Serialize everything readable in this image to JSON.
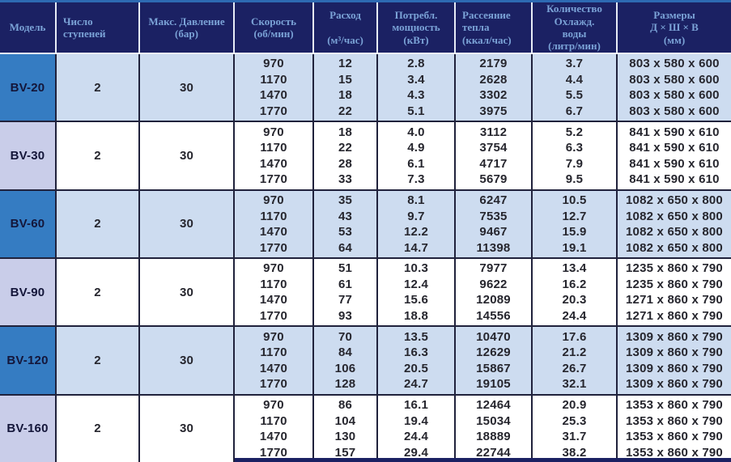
{
  "table": {
    "colors": {
      "header_bg": "#1b2163",
      "header_text": "#7ba3d7",
      "top_accent_line": "#2d6ab3",
      "model_cell_blue": "#357cc2",
      "model_cell_lavender": "#c9cde9",
      "row_light_blue": "#cddcf0",
      "row_white": "#ffffff",
      "grid_line": "#20223c",
      "data_text": "#26262e"
    },
    "headers": [
      {
        "label": "Модель"
      },
      {
        "label": "Число\nступеней"
      },
      {
        "label": "Макс. Давление\n(бар)"
      },
      {
        "label": "Скорость\n(об/мин)"
      },
      {
        "label": "Расход\n\n(м³/час)"
      },
      {
        "label": "Потребл.\nмощность\n(кВт)"
      },
      {
        "label": "Рассеяние\nтепла\n(ккал/час)"
      },
      {
        "label": "Количество\nОхлажд.\nводы\n(литр/мин)"
      },
      {
        "label": "Размеры\nД × Ш × В\n(мм)"
      }
    ],
    "models": [
      {
        "model": "BV-20",
        "stages": "2",
        "max_pressure": "30",
        "rows": [
          {
            "speed": "970",
            "flow": "12",
            "power": "2.8",
            "heat": "2179",
            "water": "3.7",
            "dims": "803 x 580 x 600"
          },
          {
            "speed": "1170",
            "flow": "15",
            "power": "3.4",
            "heat": "2628",
            "water": "4.4",
            "dims": "803 x 580 x 600"
          },
          {
            "speed": "1470",
            "flow": "18",
            "power": "4.3",
            "heat": "3302",
            "water": "5.5",
            "dims": "803 x 580 x 600"
          },
          {
            "speed": "1770",
            "flow": "22",
            "power": "5.1",
            "heat": "3975",
            "water": "6.7",
            "dims": "803 x 580 x 600"
          }
        ]
      },
      {
        "model": "BV-30",
        "stages": "2",
        "max_pressure": "30",
        "rows": [
          {
            "speed": "970",
            "flow": "18",
            "power": "4.0",
            "heat": "3112",
            "water": "5.2",
            "dims": "841 x 590 x 610"
          },
          {
            "speed": "1170",
            "flow": "22",
            "power": "4.9",
            "heat": "3754",
            "water": "6.3",
            "dims": "841 x 590 x 610"
          },
          {
            "speed": "1470",
            "flow": "28",
            "power": "6.1",
            "heat": "4717",
            "water": "7.9",
            "dims": "841 x 590 x 610"
          },
          {
            "speed": "1770",
            "flow": "33",
            "power": "7.3",
            "heat": "5679",
            "water": "9.5",
            "dims": "841 x 590 x 610"
          }
        ]
      },
      {
        "model": "BV-60",
        "stages": "2",
        "max_pressure": "30",
        "rows": [
          {
            "speed": "970",
            "flow": "35",
            "power": "8.1",
            "heat": "6247",
            "water": "10.5",
            "dims": "1082 x 650 x 800"
          },
          {
            "speed": "1170",
            "flow": "43",
            "power": "9.7",
            "heat": "7535",
            "water": "12.7",
            "dims": "1082 x 650 x 800"
          },
          {
            "speed": "1470",
            "flow": "53",
            "power": "12.2",
            "heat": "9467",
            "water": "15.9",
            "dims": "1082 x 650 x 800"
          },
          {
            "speed": "1770",
            "flow": "64",
            "power": "14.7",
            "heat": "11398",
            "water": "19.1",
            "dims": "1082 x 650 x 800"
          }
        ]
      },
      {
        "model": "BV-90",
        "stages": "2",
        "max_pressure": "30",
        "rows": [
          {
            "speed": "970",
            "flow": "51",
            "power": "10.3",
            "heat": "7977",
            "water": "13.4",
            "dims": "1235 x 860 x 790"
          },
          {
            "speed": "1170",
            "flow": "61",
            "power": "12.4",
            "heat": "9622",
            "water": "16.2",
            "dims": "1235 x 860 x 790"
          },
          {
            "speed": "1470",
            "flow": "77",
            "power": "15.6",
            "heat": "12089",
            "water": "20.3",
            "dims": "1271 x 860 x 790"
          },
          {
            "speed": "1770",
            "flow": "93",
            "power": "18.8",
            "heat": "14556",
            "water": "24.4",
            "dims": "1271 x 860 x 790"
          }
        ]
      },
      {
        "model": "BV-120",
        "stages": "2",
        "max_pressure": "30",
        "rows": [
          {
            "speed": "970",
            "flow": "70",
            "power": "13.5",
            "heat": "10470",
            "water": "17.6",
            "dims": "1309 x 860 x 790"
          },
          {
            "speed": "1170",
            "flow": "84",
            "power": "16.3",
            "heat": "12629",
            "water": "21.2",
            "dims": "1309 x 860 x 790"
          },
          {
            "speed": "1470",
            "flow": "106",
            "power": "20.5",
            "heat": "15867",
            "water": "26.7",
            "dims": "1309 x 860 x 790"
          },
          {
            "speed": "1770",
            "flow": "128",
            "power": "24.7",
            "heat": "19105",
            "water": "32.1",
            "dims": "1309 x 860 x 790"
          }
        ]
      },
      {
        "model": "BV-160",
        "stages": "2",
        "max_pressure": "30",
        "rows": [
          {
            "speed": "970",
            "flow": "86",
            "power": "16.1",
            "heat": "12464",
            "water": "20.9",
            "dims": "1353 x 860 x 790"
          },
          {
            "speed": "1170",
            "flow": "104",
            "power": "19.4",
            "heat": "15034",
            "water": "25.3",
            "dims": "1353 x 860 x 790"
          },
          {
            "speed": "1470",
            "flow": "130",
            "power": "24.4",
            "heat": "18889",
            "water": "31.7",
            "dims": "1353 x 860 x 790"
          },
          {
            "speed": "1770",
            "flow": "157",
            "power": "29.4",
            "heat": "22744",
            "water": "38.2",
            "dims": "1353 x 860 x 790"
          }
        ]
      }
    ]
  }
}
